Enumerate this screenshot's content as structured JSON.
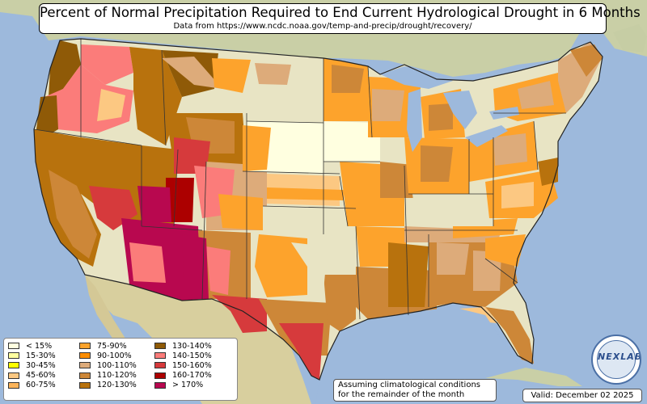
{
  "title": "Percent of Normal Precipitation Required to End Current Hydrological Drought in 6 Months",
  "subtitle": "Data from https://www.ncdc.noaa.gov/temp-and-precip/drought/recovery/",
  "legend": [
    {
      "label": "< 15%",
      "color": "#ffffe0"
    },
    {
      "label": "15-30%",
      "color": "#ffffa0"
    },
    {
      "label": "30-45%",
      "color": "#ffff00"
    },
    {
      "label": "45-60%",
      "color": "#fcc882"
    },
    {
      "label": "60-75%",
      "color": "#fbb45a"
    },
    {
      "label": "75-90%",
      "color": "#fda32c"
    },
    {
      "label": "90-100%",
      "color": "#fb8c00"
    },
    {
      "label": "100-110%",
      "color": "#ddab7a"
    },
    {
      "label": "110-120%",
      "color": "#cd8738"
    },
    {
      "label": "120-130%",
      "color": "#b8720d"
    },
    {
      "label": "130-140%",
      "color": "#8f5a07"
    },
    {
      "label": "140-150%",
      "color": "#fb7c7a"
    },
    {
      "label": "150-160%",
      "color": "#d63a3c"
    },
    {
      "label": "160-170%",
      "color": "#ac0000"
    },
    {
      "label": "> 170%",
      "color": "#b8084f"
    }
  ],
  "note": {
    "line1": "Assuming climatological conditions",
    "line2": "for the remainder of the month"
  },
  "valid": "Valid: December 02 2025",
  "logo": "NEXLAB"
}
